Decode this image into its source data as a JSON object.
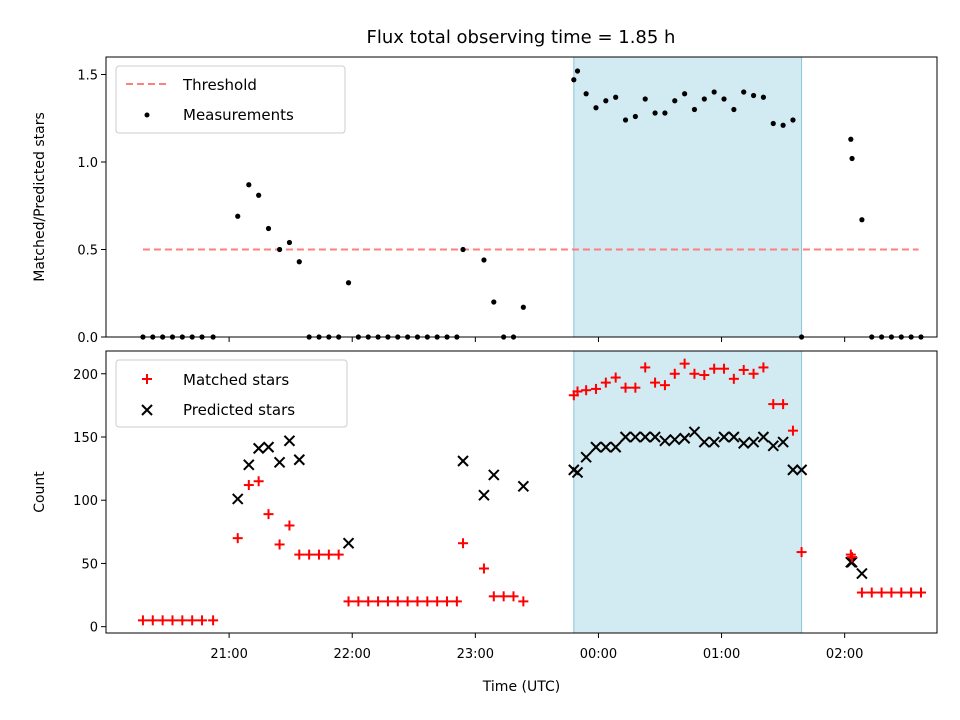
{
  "chart_data": [
    {
      "type": "scatter",
      "title": "Flux total observing time = 1.85 h",
      "ylabel": "Matched/Predicted stars",
      "xlabel": "",
      "ylim": [
        0,
        1.6
      ],
      "yticks": [
        0.0,
        0.5,
        1.0,
        1.5
      ],
      "ytick_labels": [
        "0.0",
        "0.5",
        "1.0",
        "1.5"
      ],
      "xlim_hours": [
        20.0,
        26.75
      ],
      "xticks_hours": [
        21,
        22,
        23,
        24,
        25,
        26
      ],
      "legend": {
        "location": "upper left",
        "entries": [
          {
            "label": "Threshold",
            "style": "dashed-line",
            "color": "#ff7f7f"
          },
          {
            "label": "Measurements",
            "style": "dot",
            "color": "#000000"
          }
        ]
      },
      "threshold": {
        "value": 0.5,
        "x_range_hours": [
          20.3,
          26.6
        ],
        "color": "#ff7f7f"
      },
      "shaded_region_hours": [
        23.8,
        25.65
      ],
      "shade_color": "#add8e6",
      "series": [
        {
          "name": "Measurements",
          "color": "#000000",
          "x_hours": [
            20.3,
            20.38,
            20.46,
            20.54,
            20.62,
            20.7,
            20.78,
            20.87,
            21.07,
            21.16,
            21.24,
            21.32,
            21.41,
            21.49,
            21.57,
            21.65,
            21.73,
            21.81,
            21.89,
            21.97,
            22.05,
            22.13,
            22.21,
            22.29,
            22.37,
            22.45,
            22.53,
            22.61,
            22.69,
            22.77,
            22.85,
            22.9,
            23.07,
            23.15,
            23.23,
            23.31,
            23.39,
            23.8,
            23.83,
            23.9,
            23.98,
            24.06,
            24.14,
            24.22,
            24.3,
            24.38,
            24.46,
            24.54,
            24.62,
            24.7,
            24.78,
            24.86,
            24.94,
            25.02,
            25.1,
            25.18,
            25.26,
            25.34,
            25.42,
            25.5,
            25.58,
            25.65,
            26.05,
            26.06,
            26.14,
            26.22,
            26.3,
            26.38,
            26.46,
            26.54,
            26.62
          ],
          "y": [
            0,
            0,
            0,
            0,
            0,
            0,
            0,
            0,
            0.69,
            0.87,
            0.81,
            0.62,
            0.5,
            0.54,
            0.43,
            0,
            0,
            0,
            0,
            0.31,
            0,
            0,
            0,
            0,
            0,
            0,
            0,
            0,
            0,
            0,
            0,
            0.5,
            0.44,
            0.2,
            0,
            0,
            0.17,
            1.47,
            1.52,
            1.39,
            1.31,
            1.35,
            1.37,
            1.24,
            1.26,
            1.36,
            1.28,
            1.28,
            1.35,
            1.39,
            1.3,
            1.36,
            1.4,
            1.36,
            1.3,
            1.4,
            1.38,
            1.37,
            1.22,
            1.21,
            1.24,
            0,
            1.13,
            1.02,
            0.67,
            0,
            0,
            0,
            0,
            0,
            0
          ]
        }
      ]
    },
    {
      "type": "scatter",
      "title": "",
      "ylabel": "Count",
      "xlabel": "Time (UTC)",
      "ylim": [
        -5,
        218
      ],
      "yticks": [
        0,
        50,
        100,
        150,
        200
      ],
      "ytick_labels": [
        "0",
        "50",
        "100",
        "150",
        "200"
      ],
      "xlim_hours": [
        20.0,
        26.75
      ],
      "xticks_hours": [
        21,
        22,
        23,
        24,
        25,
        26
      ],
      "xtick_labels": [
        "21:00",
        "22:00",
        "23:00",
        "00:00",
        "01:00",
        "02:00"
      ],
      "legend": {
        "location": "upper left",
        "entries": [
          {
            "label": "Matched stars",
            "style": "plus",
            "color": "#ff0000"
          },
          {
            "label": "Predicted stars",
            "style": "x",
            "color": "#000000"
          }
        ]
      },
      "shaded_region_hours": [
        23.8,
        25.65
      ],
      "shade_color": "#add8e6",
      "series": [
        {
          "name": "Matched stars",
          "marker": "plus",
          "color": "#ff0000",
          "x_hours": [
            20.3,
            20.38,
            20.46,
            20.54,
            20.62,
            20.7,
            20.78,
            20.87,
            21.07,
            21.16,
            21.24,
            21.32,
            21.41,
            21.49,
            21.57,
            21.65,
            21.73,
            21.81,
            21.89,
            21.97,
            22.05,
            22.13,
            22.21,
            22.29,
            22.37,
            22.45,
            22.53,
            22.61,
            22.69,
            22.77,
            22.85,
            22.9,
            23.07,
            23.15,
            23.23,
            23.31,
            23.39,
            23.8,
            23.83,
            23.9,
            23.98,
            24.06,
            24.14,
            24.22,
            24.3,
            24.38,
            24.46,
            24.54,
            24.62,
            24.7,
            24.78,
            24.86,
            24.94,
            25.02,
            25.1,
            25.18,
            25.26,
            25.34,
            25.42,
            25.5,
            25.58,
            25.65,
            26.05,
            26.06,
            26.14,
            26.22,
            26.3,
            26.38,
            26.46,
            26.54,
            26.62
          ],
          "y": [
            5,
            5,
            5,
            5,
            5,
            5,
            5,
            5,
            70,
            112,
            115,
            89,
            65,
            80,
            57,
            57,
            57,
            57,
            57,
            20,
            20,
            20,
            20,
            20,
            20,
            20,
            20,
            20,
            20,
            20,
            20,
            66,
            46,
            24,
            24,
            24,
            20,
            183,
            186,
            187,
            188,
            193,
            197,
            189,
            189,
            205,
            193,
            191,
            200,
            208,
            200,
            199,
            204,
            204,
            196,
            203,
            200,
            205,
            176,
            176,
            155,
            59,
            57,
            55,
            27,
            27,
            27,
            27,
            27,
            27,
            27
          ]
        },
        {
          "name": "Predicted stars",
          "marker": "x",
          "color": "#000000",
          "x_hours": [
            21.07,
            21.16,
            21.24,
            21.32,
            21.41,
            21.49,
            21.57,
            21.97,
            22.9,
            23.07,
            23.15,
            23.39,
            23.8,
            23.83,
            23.9,
            23.98,
            24.06,
            24.14,
            24.22,
            24.3,
            24.38,
            24.46,
            24.54,
            24.62,
            24.7,
            24.78,
            24.86,
            24.94,
            25.02,
            25.1,
            25.18,
            25.26,
            25.34,
            25.42,
            25.5,
            25.58,
            25.65,
            26.05,
            26.06,
            26.14
          ],
          "y": [
            101,
            128,
            141,
            142,
            130,
            147,
            132,
            66,
            131,
            104,
            120,
            111,
            124,
            122,
            134,
            142,
            142,
            142,
            150,
            150,
            150,
            150,
            147,
            148,
            149,
            154,
            146,
            146,
            150,
            150,
            145,
            146,
            150,
            143,
            146,
            124,
            124,
            51,
            51,
            42
          ]
        }
      ]
    }
  ]
}
